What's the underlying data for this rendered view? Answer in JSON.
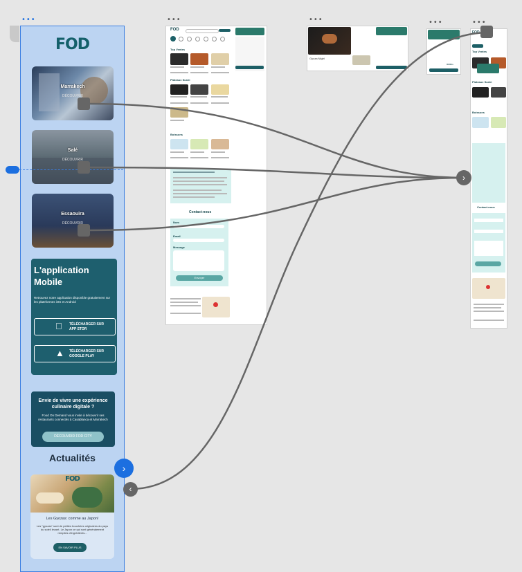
{
  "main": {
    "logo": "FOD",
    "hero_cards": [
      {
        "label": "Marrakech",
        "sub": "DÉCOUVRIR"
      },
      {
        "label": "Salé",
        "sub": "DÉCOUVRIR"
      },
      {
        "label": "Essaouira",
        "sub": "DÉCOUVRIR"
      }
    ],
    "app": {
      "title": "L'application Mobile",
      "desc": "Retrouvez notre application disponible gratuitement sur les plateformes iOS et Android",
      "appstore": "TÉLÉCHARGER SUR APP STOR",
      "googleplay": "TÉLÉCHARGER SUR GOOGLE PLAY"
    },
    "promo": {
      "title": "Envie de vivre une expérience culinaire digitale ?",
      "desc": "Food On Demand vous invite à découvrir ses restaurants connectés à Casablanca et Marrakech",
      "button": "DÉCOUVRIR FOD CITY"
    },
    "news": {
      "heading": "Actualités",
      "logo": "FOD",
      "title": "Les Gyozas: comme au Japon!",
      "desc": "Les \"gyozas\" sont de petites bouchées originaires du pays du soleil levant. Le Japon ce qui sont généralement remplies d'ingrédients...",
      "button": "EN SAVOIR PLUS"
    }
  },
  "preview": {
    "logo": "FOD",
    "sections": [
      "Top Ventes",
      "Plateaux Sushi",
      "Boissons"
    ],
    "contact_title": "Contact-nous",
    "fields": [
      "Nom",
      "Email",
      "Message"
    ],
    "field_values": [
      "Votre nom",
      "Votre adresse email",
      "Votre message..."
    ],
    "send": "Envoyer",
    "cart_button": "FINALISER LA COMMANDE",
    "cart_total": "00 Dhs",
    "product_name": "Gyoza Nigiri"
  },
  "colors": {
    "canvas": "#e6e6e6",
    "frame_selected": "#bcd4f2",
    "selection": "#3b7fe2",
    "brand": "#14606b",
    "connector": "#666666"
  }
}
